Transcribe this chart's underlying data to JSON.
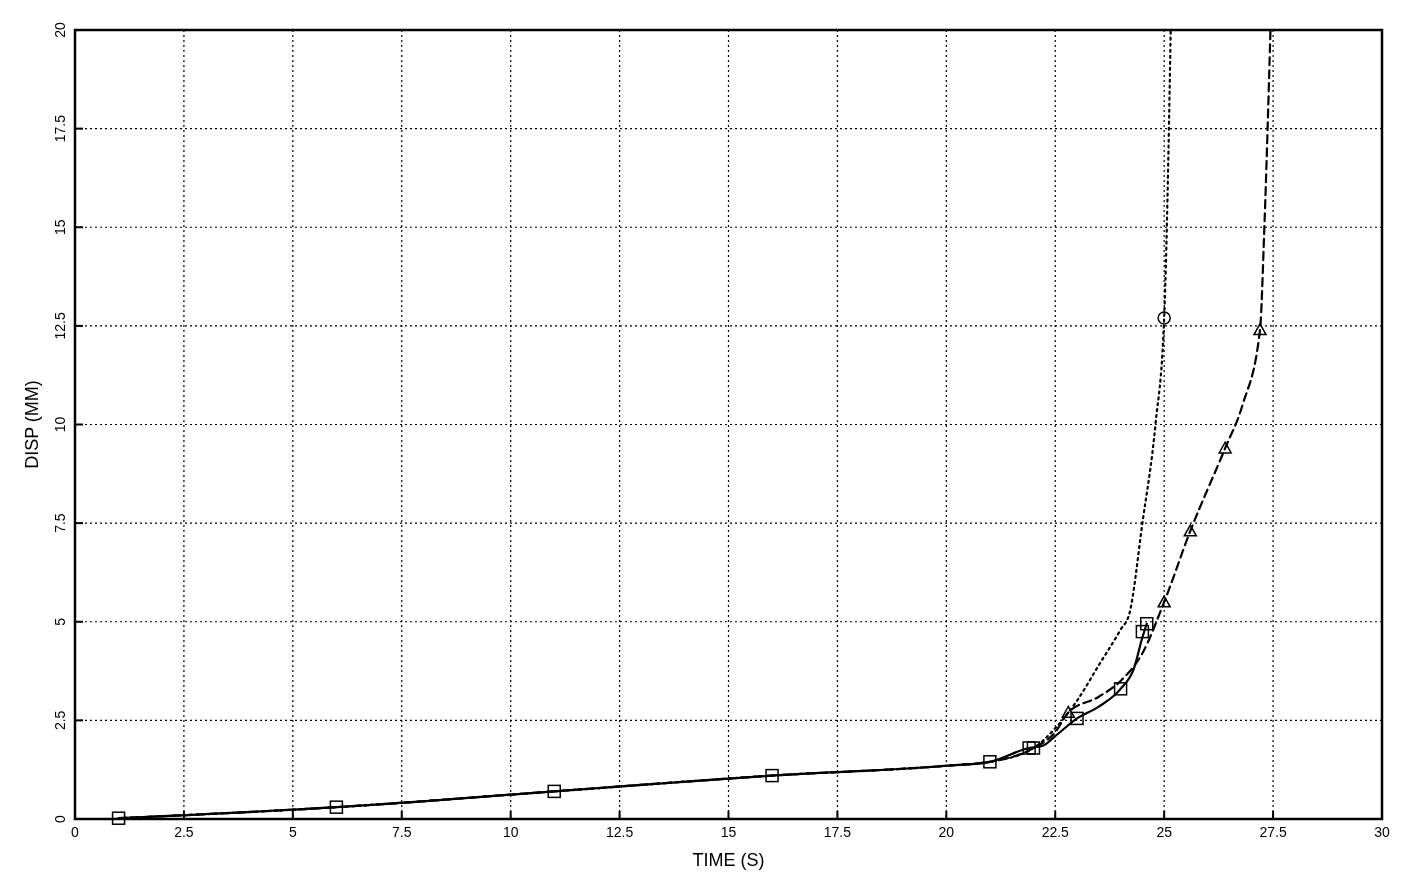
{
  "chart_data": {
    "type": "line",
    "xlabel": "TIME (S)",
    "ylabel": "DISP (MM)",
    "xlim": [
      0,
      30
    ],
    "xticks": [
      0,
      2.5,
      5,
      7.5,
      10,
      12.5,
      15,
      17.5,
      20,
      22.5,
      25,
      27.5,
      30
    ],
    "ylim": [
      0,
      20
    ],
    "yticks": [
      0,
      2.5,
      5,
      7.5,
      10,
      12.5,
      15,
      17.5,
      20
    ],
    "grid": true,
    "series": [
      {
        "color": "#000000",
        "line_style": "solid",
        "marker": "none",
        "x": [
          1,
          6,
          11,
          16,
          20,
          21,
          21.9,
          22.2,
          22.5,
          23,
          23.5,
          24,
          24.3,
          24.5,
          24.6
        ],
        "values": [
          0.02,
          0.3,
          0.7,
          1.1,
          1.35,
          1.45,
          1.8,
          1.85,
          2.1,
          2.55,
          2.85,
          3.3,
          3.8,
          4.6,
          4.95
        ]
      },
      {
        "type": "scatter",
        "color": "#000000",
        "marker": "square",
        "x": [
          1,
          6,
          11,
          16,
          21,
          21.9,
          22,
          23,
          24,
          24.5,
          24.6
        ],
        "values": [
          0.02,
          0.3,
          0.7,
          1.1,
          1.45,
          1.8,
          1.8,
          2.55,
          3.3,
          4.75,
          4.95
        ]
      },
      {
        "color": "#000000",
        "line_style": "dotted",
        "marker": "none",
        "x": [
          1,
          6,
          11,
          16,
          20,
          21,
          22,
          22.5,
          23,
          23.5,
          24,
          24.2,
          24.5,
          24.8,
          25,
          25.1,
          25.15
        ],
        "values": [
          0.02,
          0.3,
          0.7,
          1.1,
          1.35,
          1.45,
          1.8,
          2.3,
          3.0,
          3.9,
          4.8,
          5.2,
          7.5,
          10.0,
          12.7,
          17,
          20
        ]
      },
      {
        "type": "scatter",
        "color": "#000000",
        "marker": "circle",
        "x": [
          25
        ],
        "values": [
          12.7
        ]
      },
      {
        "color": "#000000",
        "line_style": "dashed",
        "marker": "none",
        "x": [
          1,
          6,
          11,
          16,
          20,
          21,
          22,
          22.5,
          22.8,
          23.5,
          24,
          24.5,
          25,
          25.6,
          26.4,
          26.8,
          27.2,
          27.3,
          27.44
        ],
        "values": [
          0.02,
          0.3,
          0.7,
          1.1,
          1.35,
          1.45,
          1.8,
          2.2,
          2.7,
          3.1,
          3.5,
          4.2,
          5.5,
          7.3,
          9.4,
          10.5,
          12.4,
          15,
          20
        ]
      },
      {
        "type": "scatter",
        "color": "#000000",
        "marker": "triangle",
        "x": [
          22.8,
          25,
          25.6,
          26.4,
          27.2
        ],
        "values": [
          2.7,
          5.5,
          7.3,
          9.4,
          12.4
        ]
      }
    ]
  }
}
